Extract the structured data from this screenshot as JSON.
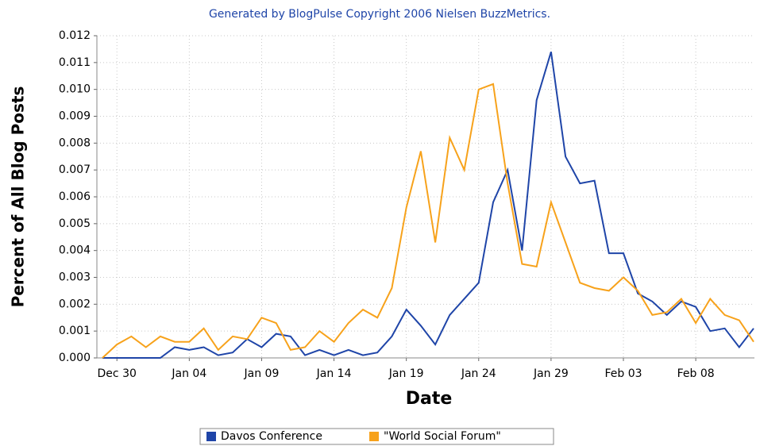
{
  "chart_data": {
    "type": "line",
    "title": "Generated by BlogPulse Copyright 2006 Nielsen BuzzMetrics.",
    "xlabel": "Date",
    "ylabel": "Percent of All Blog Posts",
    "categories": [
      null,
      "Dec 30",
      null,
      null,
      null,
      null,
      "Jan 04",
      null,
      null,
      null,
      null,
      "Jan 09",
      null,
      null,
      null,
      null,
      "Jan 14",
      null,
      null,
      null,
      null,
      "Jan 19",
      null,
      null,
      null,
      null,
      "Jan 24",
      null,
      null,
      null,
      null,
      "Jan 29",
      null,
      null,
      null,
      null,
      "Feb 03",
      null,
      null,
      null,
      null,
      "Feb 08",
      null,
      null,
      null,
      null
    ],
    "series": [
      {
        "name": "Davos Conference",
        "color": "#1f45a8",
        "values": [
          0,
          0,
          0,
          0,
          0,
          0.0004,
          0.0003,
          0.0004,
          0.0001,
          0.0002,
          0.0007,
          0.0004,
          0.0009,
          0.0008,
          0.0001,
          0.0003,
          0.0001,
          0.0003,
          0.0001,
          0.0002,
          0.0008,
          0.0018,
          0.0012,
          0.0005,
          0.0016,
          0.0022,
          0.0028,
          0.0058,
          0.007,
          0.004,
          0.0096,
          0.0114,
          0.0075,
          0.0065,
          0.0066,
          0.0039,
          0.0039,
          0.0024,
          0.0021,
          0.0016,
          0.0021,
          0.0019,
          0.001,
          0.0011,
          0.0004,
          0.0011
        ]
      },
      {
        "name": "\"World Social Forum\"",
        "color": "#f7a21b",
        "values": [
          0,
          0.0005,
          0.0008,
          0.0004,
          0.0008,
          0.0006,
          0.0006,
          0.0011,
          0.0003,
          0.0008,
          0.0007,
          0.0015,
          0.0013,
          0.0003,
          0.0004,
          0.001,
          0.0006,
          0.0013,
          0.0018,
          0.0015,
          0.0026,
          0.0056,
          0.0077,
          0.0043,
          0.0082,
          0.007,
          0.01,
          0.0102,
          0.0065,
          0.0035,
          0.0034,
          0.0058,
          0.0043,
          0.0028,
          0.0026,
          0.0025,
          0.003,
          0.0025,
          0.0016,
          0.0017,
          0.0022,
          0.0013,
          0.0022,
          0.0016,
          0.0014,
          0.0006
        ]
      }
    ],
    "ylim": [
      0,
      0.012
    ],
    "yticks": [
      {
        "value": 0,
        "label": "0.000"
      },
      {
        "value": 0.001,
        "label": "0.001"
      },
      {
        "value": 0.002,
        "label": "0.002"
      },
      {
        "value": 0.003,
        "label": "0.003"
      },
      {
        "value": 0.004,
        "label": "0.004"
      },
      {
        "value": 0.005,
        "label": "0.005"
      },
      {
        "value": 0.006,
        "label": "0.006"
      },
      {
        "value": 0.007,
        "label": "0.007"
      },
      {
        "value": 0.008,
        "label": "0.008"
      },
      {
        "value": 0.009,
        "label": "0.009"
      },
      {
        "value": 0.01,
        "label": "0.010"
      },
      {
        "value": 0.011,
        "label": "0.011"
      },
      {
        "value": 0.012,
        "label": "0.012"
      }
    ],
    "grid": true,
    "legend": "bottom"
  }
}
